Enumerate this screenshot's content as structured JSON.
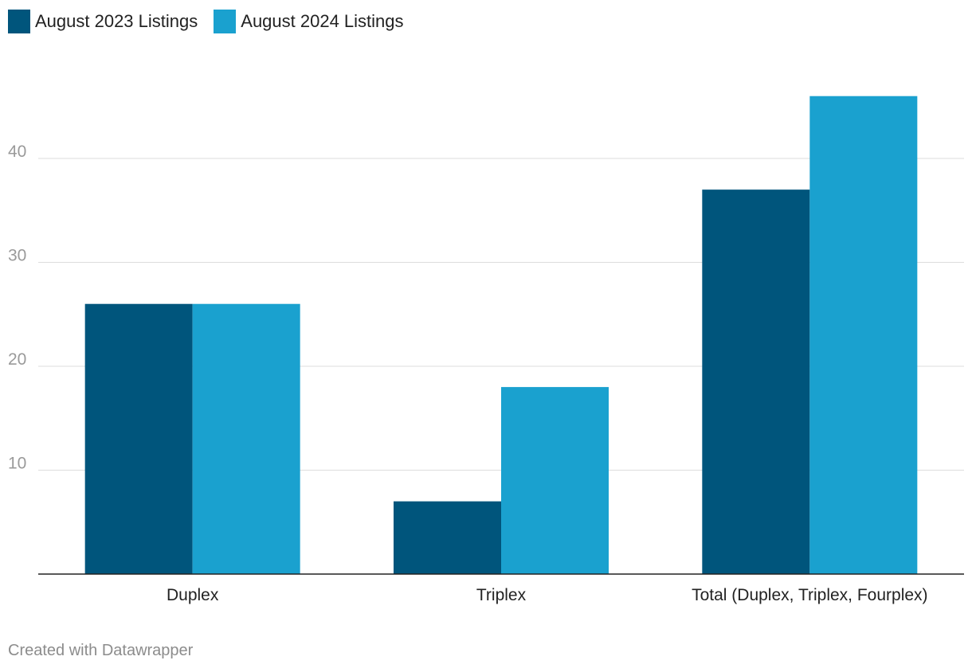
{
  "chart_data": {
    "type": "bar",
    "categories": [
      "Duplex",
      "Triplex",
      "Total (Duplex, Triplex, Fourplex)"
    ],
    "series": [
      {
        "name": "August 2023 Listings",
        "color": "#00557c",
        "values": [
          26,
          7,
          37
        ]
      },
      {
        "name": "August 2024 Listings",
        "color": "#1aa1cf",
        "values": [
          26,
          18,
          46
        ]
      }
    ],
    "yticks": [
      10,
      20,
      30,
      40
    ],
    "ylim": [
      0,
      48
    ],
    "grid": true,
    "legend_position": "top-left"
  },
  "footer": {
    "credit": "Created with Datawrapper"
  }
}
